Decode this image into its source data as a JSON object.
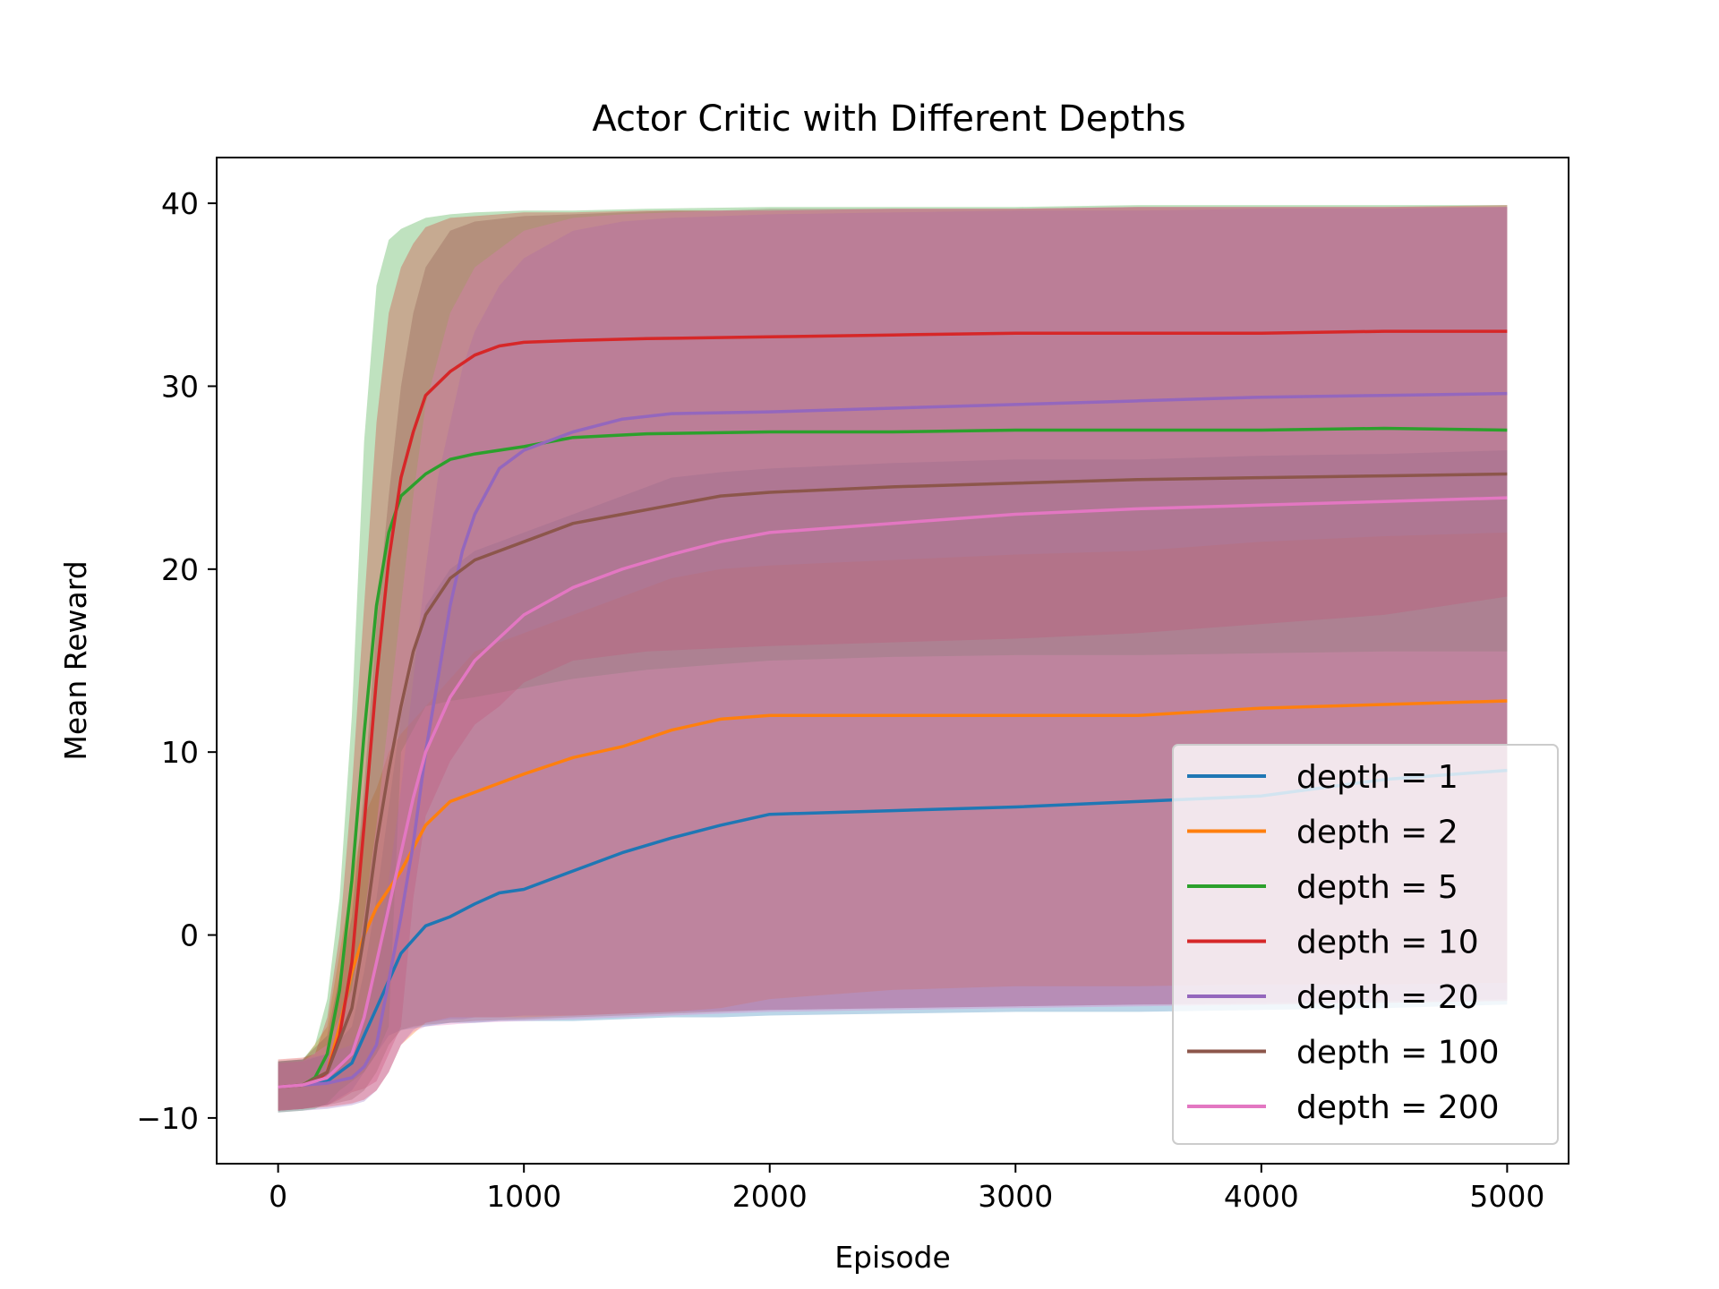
{
  "chart_data": {
    "type": "line",
    "title": "Actor Critic with Different Depths",
    "xlabel": "Episode",
    "ylabel": "Mean Reward",
    "xlim": [
      -250,
      5250
    ],
    "ylim": [
      -12.5,
      42.5
    ],
    "xticks": [
      0,
      1000,
      2000,
      3000,
      4000,
      5000
    ],
    "yticks": [
      -10,
      0,
      10,
      20,
      30,
      40
    ],
    "xtick_labels": [
      "0",
      "1000",
      "2000",
      "3000",
      "4000",
      "5000"
    ],
    "ytick_labels": [
      "−10",
      "0",
      "10",
      "20",
      "30",
      "40"
    ],
    "grid": false,
    "legend_position": "lower-right",
    "shaded_band": "std",
    "series": [
      {
        "name": "depth = 1",
        "color": "#1f77b4",
        "x": [
          0,
          100,
          200,
          300,
          350,
          400,
          450,
          500,
          600,
          700,
          800,
          900,
          1000,
          1200,
          1400,
          1600,
          1800,
          2000,
          2500,
          3000,
          3500,
          4000,
          4500,
          5000
        ],
        "mean": [
          -8.3,
          -8.2,
          -8,
          -7,
          -5.5,
          -4,
          -2.5,
          -1,
          0.5,
          1,
          1.7,
          2.3,
          2.5,
          3.5,
          4.5,
          5.3,
          6,
          6.6,
          6.8,
          7,
          7.3,
          7.6,
          8.5,
          9
        ],
        "lower": [
          -9.6,
          -9.5,
          -9.3,
          -8.5,
          -7.5,
          -6.5,
          -5.5,
          -5.2,
          -5,
          -4.8,
          -4.8,
          -4.7,
          -4.7,
          -4.7,
          -4.6,
          -4.5,
          -4.5,
          -4.4,
          -4.3,
          -4.2,
          -4.2,
          -4.1,
          -4,
          -3.8
        ],
        "upper": [
          -7,
          -6.9,
          -6.5,
          -5,
          -2,
          2,
          7,
          12,
          18,
          20,
          21,
          21.5,
          22,
          23,
          24,
          25,
          25.3,
          25.5,
          25.8,
          26,
          26,
          26.2,
          26.3,
          26.5
        ]
      },
      {
        "name": "depth = 2",
        "color": "#ff7f0e",
        "x": [
          0,
          100,
          200,
          250,
          300,
          350,
          400,
          450,
          500,
          600,
          700,
          800,
          1000,
          1200,
          1400,
          1600,
          1800,
          2000,
          2500,
          3000,
          3500,
          4000,
          4500,
          5000
        ],
        "mean": [
          -8.3,
          -8.2,
          -7.5,
          -5,
          -2,
          0,
          1.5,
          2.5,
          3.5,
          6,
          7.3,
          7.8,
          8.8,
          9.7,
          10.3,
          11.2,
          11.8,
          12,
          12,
          12,
          12,
          12.4,
          12.6,
          12.8
        ],
        "lower": [
          -9.6,
          -9.5,
          -9.4,
          -9.3,
          -9.2,
          -9,
          -8.5,
          -7.5,
          -6,
          -4.8,
          -4.5,
          -4.5,
          -4.5,
          -4.4,
          -4.3,
          -4.2,
          -4,
          -3.5,
          -3,
          -2.8,
          -2.8,
          -2.7,
          -2.7,
          -2.6
        ],
        "upper": [
          -7,
          -6.9,
          -5,
          -1,
          3,
          6.5,
          8,
          10,
          11,
          12.5,
          14,
          15.5,
          16.5,
          17.5,
          18.5,
          19.5,
          20,
          20.2,
          20.5,
          20.8,
          21,
          21.5,
          21.8,
          22
        ]
      },
      {
        "name": "depth = 5",
        "color": "#2ca02c",
        "x": [
          0,
          100,
          150,
          200,
          250,
          300,
          350,
          400,
          450,
          500,
          600,
          700,
          800,
          1000,
          1200,
          1500,
          2000,
          2500,
          3000,
          3500,
          4000,
          4500,
          5000
        ],
        "mean": [
          -8.3,
          -8.2,
          -7.8,
          -6.5,
          -3,
          3,
          11,
          18,
          22,
          24,
          25.2,
          26,
          26.3,
          26.7,
          27.2,
          27.4,
          27.5,
          27.5,
          27.6,
          27.6,
          27.6,
          27.7,
          27.6
        ],
        "lower": [
          -9.7,
          -9.6,
          -9.5,
          -9.2,
          -8.5,
          -8,
          -7.5,
          -6.5,
          -5,
          10,
          12.5,
          12.8,
          13,
          13.5,
          14,
          14.5,
          15,
          15.2,
          15.3,
          15.3,
          15.4,
          15.5,
          15.5
        ],
        "upper": [
          -6.9,
          -6.8,
          -6,
          -3.5,
          2,
          12,
          27,
          35.5,
          38,
          38.6,
          39.2,
          39.4,
          39.5,
          39.6,
          39.6,
          39.7,
          39.8,
          39.8,
          39.8,
          39.9,
          39.9,
          39.9,
          39.9
        ]
      },
      {
        "name": "depth = 10",
        "color": "#d62728",
        "x": [
          0,
          100,
          150,
          200,
          250,
          300,
          350,
          400,
          450,
          500,
          550,
          600,
          700,
          800,
          900,
          1000,
          1200,
          1500,
          2000,
          2500,
          3000,
          3500,
          4000,
          4500,
          5000
        ],
        "mean": [
          -8.3,
          -8.2,
          -8,
          -7.5,
          -5.5,
          -1.5,
          6,
          14,
          20.5,
          25,
          27.5,
          29.5,
          30.8,
          31.7,
          32.2,
          32.4,
          32.5,
          32.6,
          32.7,
          32.8,
          32.9,
          32.9,
          32.9,
          33,
          33
        ],
        "lower": [
          -9.6,
          -9.5,
          -9.4,
          -9.3,
          -9,
          -8.6,
          -8.4,
          -8,
          -6.5,
          -5,
          2,
          6.5,
          9.5,
          11.5,
          12.5,
          13.8,
          15,
          15.5,
          15.8,
          16,
          16.2,
          16.5,
          17,
          17.5,
          18.5
        ],
        "upper": [
          -6.8,
          -6.7,
          -6.5,
          -4.5,
          0,
          8,
          18,
          28,
          34,
          36.5,
          37.8,
          38.7,
          39.2,
          39.3,
          39.4,
          39.5,
          39.5,
          39.6,
          39.6,
          39.7,
          39.7,
          39.8,
          39.8,
          39.8,
          39.9
        ]
      },
      {
        "name": "depth = 20",
        "color": "#9467bd",
        "x": [
          0,
          100,
          200,
          300,
          350,
          400,
          450,
          500,
          550,
          600,
          650,
          700,
          750,
          800,
          900,
          1000,
          1200,
          1400,
          1600,
          2000,
          2500,
          3000,
          3500,
          4000,
          4500,
          5000
        ],
        "mean": [
          -8.3,
          -8.2,
          -8.1,
          -7.8,
          -7.2,
          -6,
          -2.5,
          1,
          5,
          10,
          14,
          18,
          21,
          23,
          25.5,
          26.5,
          27.5,
          28.2,
          28.5,
          28.6,
          28.8,
          29,
          29.2,
          29.4,
          29.5,
          29.6
        ],
        "lower": [
          -9.7,
          -9.6,
          -9.5,
          -9.3,
          -9.1,
          -8.5,
          -7.5,
          -6,
          -5.2,
          -4.8,
          -4.7,
          -4.6,
          -4.6,
          -4.5,
          -4.5,
          -4.4,
          -4.4,
          -4.3,
          -4.2,
          -4.1,
          -4,
          -3.9,
          -3.8,
          -3.7,
          -3.6,
          -3.5
        ],
        "upper": [
          -6.9,
          -6.8,
          -6.5,
          -6,
          -4.5,
          -2,
          3,
          8,
          14,
          20,
          25,
          28,
          31,
          33,
          35.5,
          37,
          38.5,
          39,
          39.2,
          39.4,
          39.5,
          39.6,
          39.6,
          39.7,
          39.7,
          39.8
        ]
      },
      {
        "name": "depth = 100",
        "color": "#8c564b",
        "x": [
          0,
          100,
          200,
          300,
          350,
          400,
          450,
          500,
          550,
          600,
          700,
          800,
          1000,
          1200,
          1400,
          1600,
          1800,
          2000,
          2500,
          3000,
          3500,
          4000,
          4500,
          5000
        ],
        "mean": [
          -8.3,
          -8.2,
          -7.5,
          -4,
          0,
          5,
          9,
          12.5,
          15.5,
          17.5,
          19.5,
          20.5,
          21.5,
          22.5,
          23,
          23.5,
          24,
          24.2,
          24.5,
          24.7,
          24.9,
          25,
          25.1,
          25.2
        ],
        "lower": [
          -9.6,
          -9.5,
          -9.3,
          -9,
          -8.5,
          -7.5,
          -6,
          -5.2,
          -5,
          -4.9,
          -4.8,
          -4.7,
          -4.6,
          -4.5,
          -4.4,
          -4.3,
          -4.2,
          -4.1,
          -4,
          -3.9,
          -3.8,
          -3.8,
          -3.7,
          -3.6
        ],
        "upper": [
          -6.9,
          -6.8,
          -5.5,
          1,
          8,
          17,
          24,
          30,
          34,
          36.5,
          38.5,
          39,
          39.3,
          39.4,
          39.5,
          39.6,
          39.6,
          39.7,
          39.7,
          39.7,
          39.8,
          39.8,
          39.8,
          39.8
        ]
      },
      {
        "name": "depth = 200",
        "color": "#e377c2",
        "x": [
          0,
          100,
          200,
          300,
          350,
          400,
          450,
          500,
          550,
          600,
          700,
          800,
          1000,
          1200,
          1400,
          1600,
          1800,
          2000,
          2500,
          3000,
          3500,
          4000,
          4500,
          5000
        ],
        "mean": [
          -8.3,
          -8.2,
          -7.8,
          -6.5,
          -4.5,
          -1.5,
          1.5,
          4.5,
          7.5,
          10,
          13,
          15,
          17.5,
          19,
          20,
          20.8,
          21.5,
          22,
          22.5,
          23,
          23.3,
          23.5,
          23.7,
          23.9
        ],
        "lower": [
          -9.6,
          -9.5,
          -9.4,
          -9.2,
          -9,
          -8.5,
          -7.5,
          -6,
          -5.3,
          -5,
          -4.9,
          -4.8,
          -4.7,
          -4.6,
          -4.5,
          -4.4,
          -4.3,
          -4.2,
          -4.1,
          -4,
          -3.9,
          -3.8,
          -3.7,
          -3.6
        ],
        "upper": [
          -7,
          -6.9,
          -6,
          -3,
          1,
          6,
          12,
          18,
          24,
          29,
          34,
          36.5,
          38.5,
          39.2,
          39.4,
          39.5,
          39.6,
          39.6,
          39.7,
          39.7,
          39.8,
          39.8,
          39.8,
          39.8
        ]
      }
    ]
  }
}
